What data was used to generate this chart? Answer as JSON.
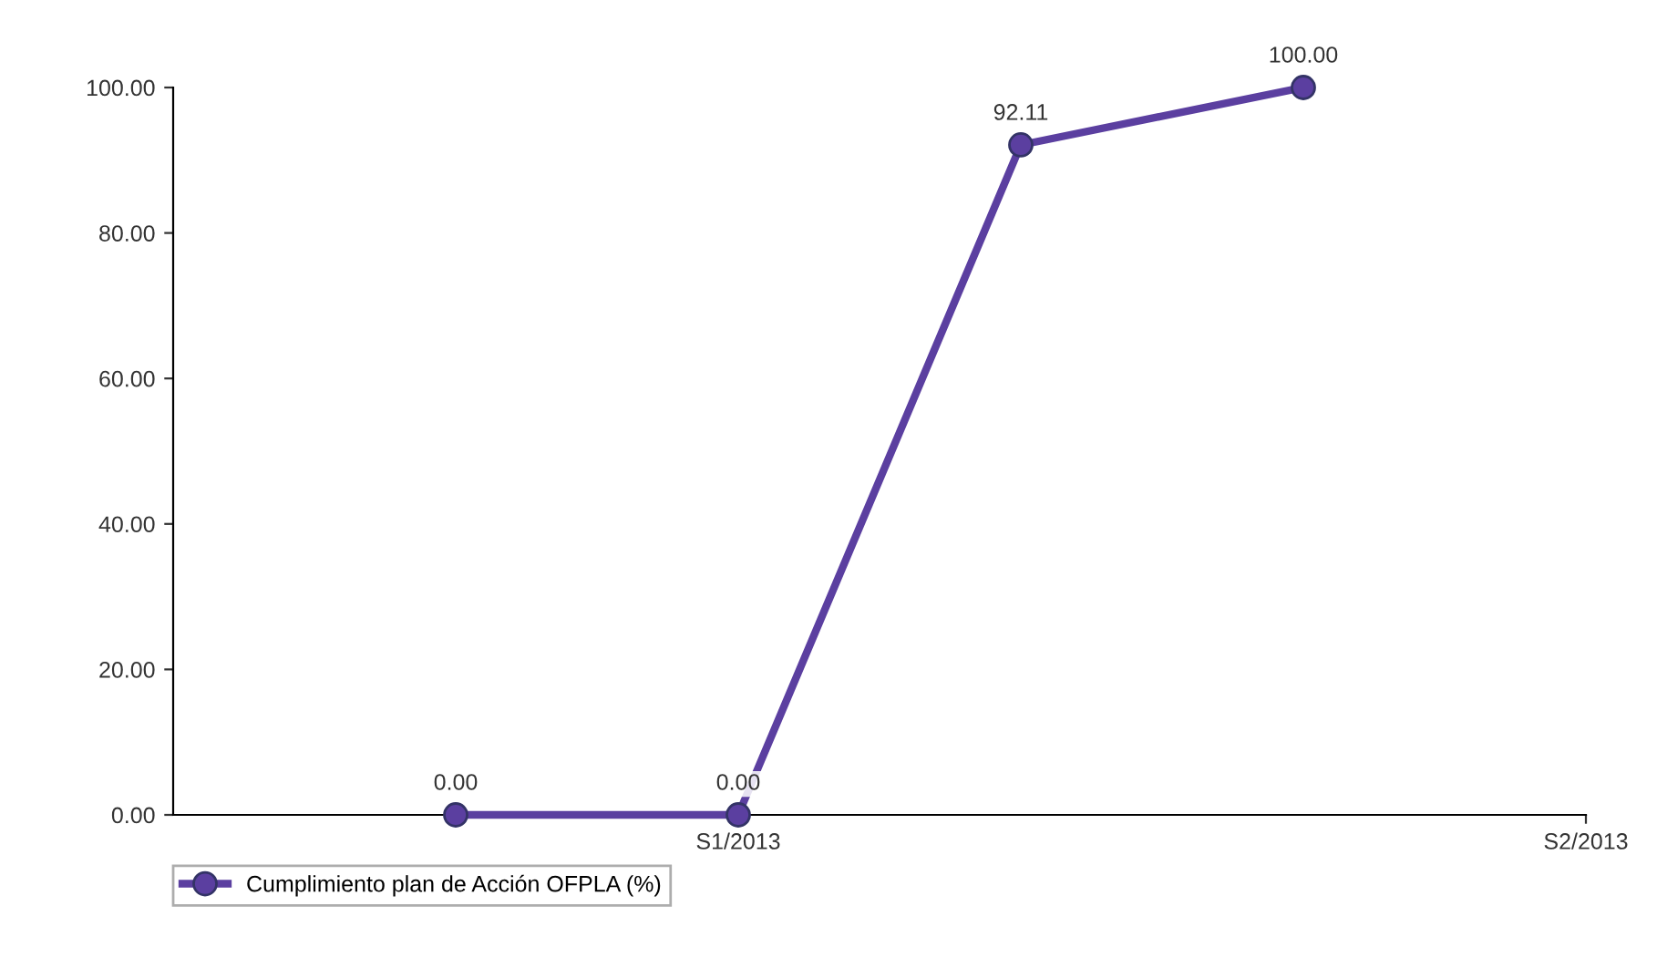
{
  "chart_data": {
    "type": "line",
    "categories": [
      null,
      "S1/2013",
      null,
      null,
      "S2/2013"
    ],
    "series": [
      {
        "name": "Cumplimiento plan de Acción OFPLA (%)",
        "color": "#5b3fa0",
        "values": [
          0,
          0,
          92.11,
          100,
          null
        ]
      }
    ],
    "ylim": [
      0,
      100
    ],
    "yticks": [
      {
        "value": 0,
        "label": "0.00"
      },
      {
        "value": 20,
        "label": "20.00"
      },
      {
        "value": 40,
        "label": "40.00"
      },
      {
        "value": 60,
        "label": "60.00"
      },
      {
        "value": 80,
        "label": "80.00"
      },
      {
        "value": 100,
        "label": "100.00"
      }
    ],
    "value_labels": [
      "0.00",
      "0.00",
      "92.11",
      "100.00",
      null
    ],
    "marker": "circle",
    "line_style": "solid",
    "grid": false,
    "legend": "bottom left"
  }
}
